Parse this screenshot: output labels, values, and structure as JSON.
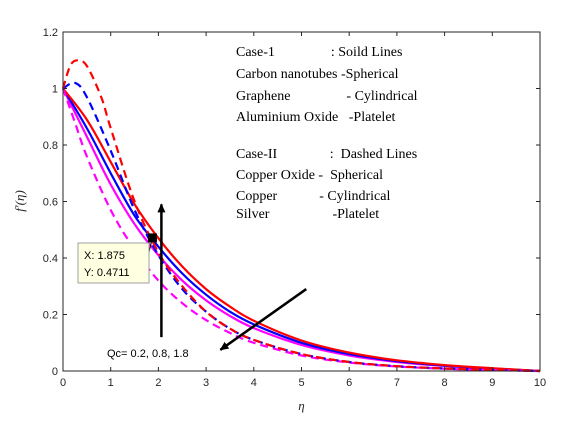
{
  "chart_data": {
    "type": "line",
    "xlabel": "η",
    "ylabel": "f′(η)",
    "xlim": [
      0,
      10
    ],
    "ylim": [
      0,
      1.2
    ],
    "xticks": [
      0,
      1,
      2,
      3,
      4,
      5,
      6,
      7,
      8,
      9,
      10
    ],
    "yticks": [
      0,
      0.2,
      0.4,
      0.6,
      0.8,
      1,
      1.2
    ],
    "grid": false,
    "series": [
      {
        "color": "#ff00ff",
        "dash": false,
        "x": [
          0,
          0.5,
          1,
          1.5,
          2,
          2.5,
          3,
          3.5,
          4,
          5,
          6,
          7,
          8,
          9,
          10
        ],
        "y": [
          1.0,
          0.83,
          0.66,
          0.52,
          0.41,
          0.32,
          0.25,
          0.195,
          0.152,
          0.092,
          0.055,
          0.032,
          0.018,
          0.008,
          0.0
        ]
      },
      {
        "color": "#0000ff",
        "dash": false,
        "x": [
          0,
          0.5,
          1,
          1.5,
          2,
          2.5,
          3,
          3.5,
          4,
          5,
          6,
          7,
          8,
          9,
          10
        ],
        "y": [
          1.0,
          0.86,
          0.7,
          0.55,
          0.44,
          0.345,
          0.27,
          0.21,
          0.165,
          0.1,
          0.06,
          0.035,
          0.019,
          0.009,
          0.0
        ]
      },
      {
        "color": "#ff0000",
        "dash": false,
        "x": [
          0,
          0.5,
          1,
          1.5,
          2,
          2.5,
          3,
          3.5,
          4,
          5,
          6,
          7,
          8,
          9,
          10
        ],
        "y": [
          1.0,
          0.89,
          0.74,
          0.59,
          0.47,
          0.37,
          0.29,
          0.228,
          0.178,
          0.108,
          0.065,
          0.038,
          0.021,
          0.01,
          0.0
        ]
      },
      {
        "color": "#ff00ff",
        "dash": true,
        "x": [
          0,
          0.25,
          0.5,
          1,
          1.5,
          2,
          2.5,
          3,
          3.5,
          4,
          5,
          6,
          7,
          8,
          9,
          10
        ],
        "y": [
          1.0,
          0.88,
          0.76,
          0.57,
          0.43,
          0.32,
          0.24,
          0.18,
          0.135,
          0.1,
          0.055,
          0.03,
          0.016,
          0.008,
          0.003,
          0.0
        ]
      },
      {
        "color": "#0000ff",
        "dash": true,
        "x": [
          0,
          0.25,
          0.5,
          1,
          1.5,
          2,
          2.5,
          3,
          3.5,
          4,
          5,
          6,
          7,
          8,
          9,
          10
        ],
        "y": [
          1.0,
          1.02,
          0.97,
          0.78,
          0.57,
          0.41,
          0.29,
          0.21,
          0.15,
          0.11,
          0.06,
          0.032,
          0.017,
          0.009,
          0.004,
          0.0
        ]
      },
      {
        "color": "#ff0000",
        "dash": true,
        "x": [
          0,
          0.15,
          0.3,
          0.5,
          0.8,
          1,
          1.5,
          2,
          2.5,
          3,
          3.5,
          4,
          5,
          6,
          7,
          8,
          9,
          10
        ],
        "y": [
          1.0,
          1.08,
          1.1,
          1.08,
          0.97,
          0.86,
          0.6,
          0.42,
          0.3,
          0.21,
          0.15,
          0.11,
          0.06,
          0.032,
          0.017,
          0.009,
          0.004,
          0.0
        ]
      }
    ],
    "legend_lines": [
      "Case-1                : Soild Lines",
      "Carbon nanotubes -Spherical",
      "Graphene                - Cylindrical",
      "Aluminium Oxide   -Platelet",
      "Case-II               :  Dashed Lines",
      "Copper Oxide -  Spherical",
      "Copper            - Cylindrical",
      "Silver                  -Platelet"
    ],
    "datatip": {
      "x": 1.875,
      "y": 0.4711,
      "x_label": "X: 1.875",
      "y_label": "Y: 0.4711"
    },
    "annotation": {
      "text": "Qc= 0.2, 0.8, 1.8",
      "vertical_arrow": {
        "x": 2.0,
        "y_from": 0.12,
        "y_to": 0.59
      },
      "diagonal_arrow": {
        "x_from": 5.1,
        "y_from": 0.29,
        "x_to": 3.3,
        "y_to": 0.075
      }
    }
  }
}
